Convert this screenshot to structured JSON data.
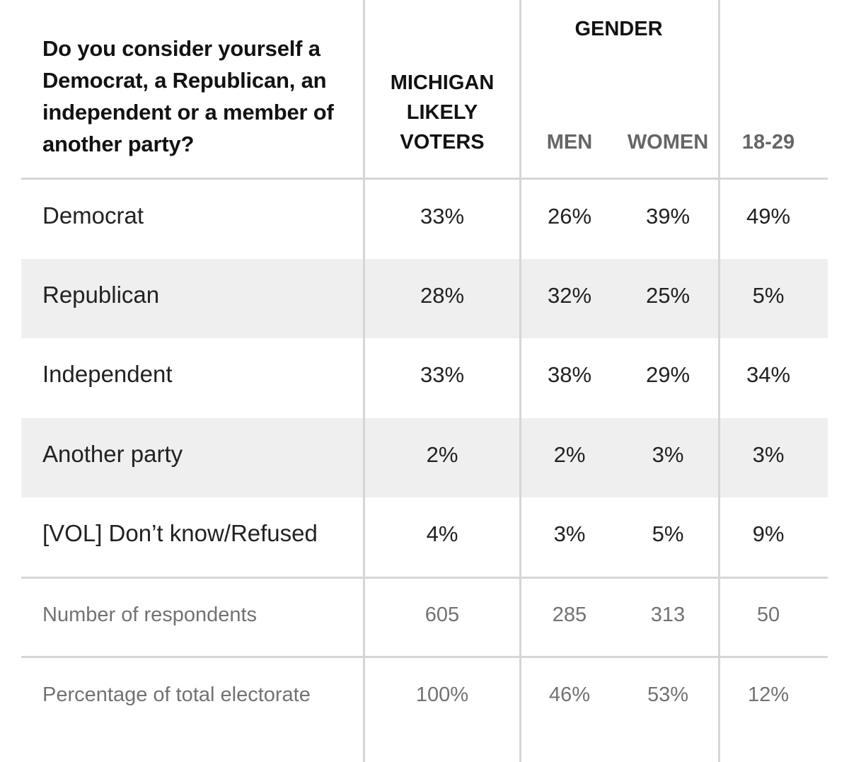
{
  "question": "Do you consider yourself a Democrat, a Republican, an independent or a member of another party?",
  "group_header": "GENDER",
  "columns": [
    {
      "label": "MICHIGAN\nLIKELY\nVOTERS"
    },
    {
      "label": "MEN"
    },
    {
      "label": "WOMEN"
    },
    {
      "label": "18-29"
    }
  ],
  "rows": [
    {
      "label": "Democrat",
      "values": [
        "33%",
        "26%",
        "39%",
        "49%"
      ]
    },
    {
      "label": "Republican",
      "values": [
        "28%",
        "32%",
        "25%",
        "5%"
      ]
    },
    {
      "label": "Independent",
      "values": [
        "33%",
        "38%",
        "29%",
        "34%"
      ]
    },
    {
      "label": "Another party",
      "values": [
        "2%",
        "2%",
        "3%",
        "3%"
      ]
    },
    {
      "label": "[VOL] Don’t know/Refused",
      "values": [
        "4%",
        "3%",
        "5%",
        "9%"
      ]
    }
  ],
  "footer_rows": [
    {
      "label": "Number of respondents",
      "values": [
        "605",
        "285",
        "313",
        "50"
      ]
    },
    {
      "label": "Percentage of total electorate",
      "values": [
        "100%",
        "46%",
        "53%",
        "12%"
      ]
    }
  ],
  "chart_data": {
    "type": "table",
    "title": "Do you consider yourself a Democrat, a Republican, an independent or a member of another party?",
    "column_groups": [
      {
        "name": "GENDER",
        "columns": [
          "MEN",
          "WOMEN"
        ]
      }
    ],
    "columns": [
      "MICHIGAN LIKELY VOTERS",
      "MEN",
      "WOMEN",
      "18-29"
    ],
    "rows": [
      {
        "label": "Democrat",
        "values": [
          33,
          26,
          39,
          49
        ]
      },
      {
        "label": "Republican",
        "values": [
          28,
          32,
          25,
          5
        ]
      },
      {
        "label": "Independent",
        "values": [
          33,
          38,
          29,
          34
        ]
      },
      {
        "label": "Another party",
        "values": [
          2,
          2,
          3,
          3
        ]
      },
      {
        "label": "[VOL] Don’t know/Refused",
        "values": [
          4,
          3,
          5,
          9
        ]
      }
    ],
    "unit": "%",
    "number_of_respondents": [
      605,
      285,
      313,
      50
    ],
    "percentage_of_total_electorate": [
      100,
      46,
      53,
      12
    ]
  }
}
